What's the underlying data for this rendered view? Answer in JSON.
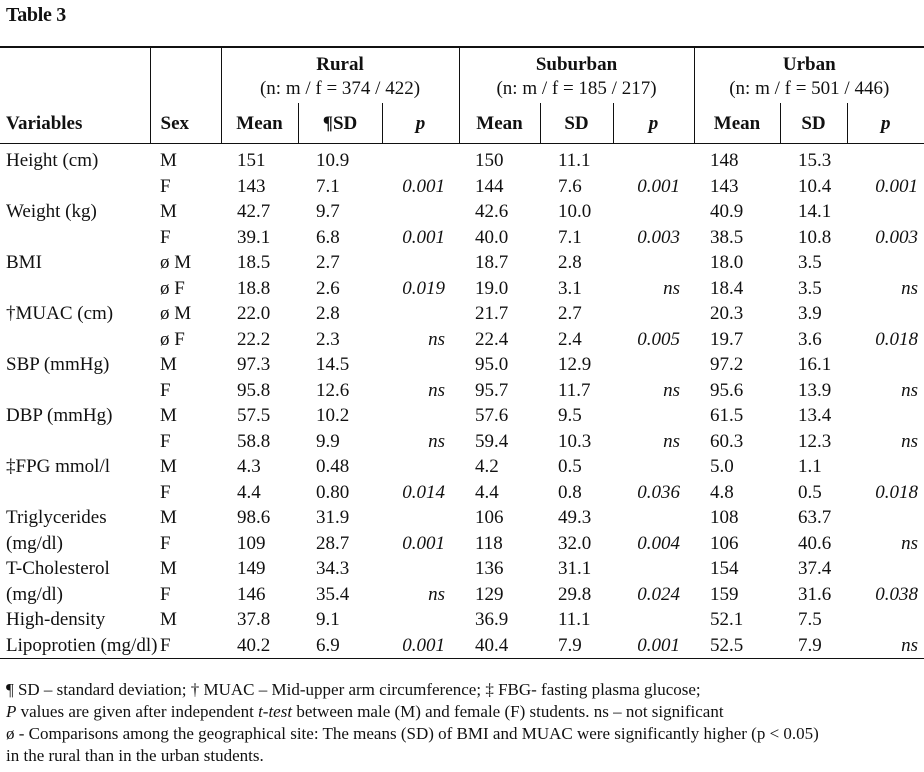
{
  "caption": "Table 3",
  "groups": [
    {
      "name": "Rural",
      "n": "(n: m / f = 374 / 422)"
    },
    {
      "name": "Suburban",
      "n": "(n: m / f = 185 / 217)"
    },
    {
      "name": "Urban",
      "n": "(n: m / f = 501 / 446)"
    }
  ],
  "headers": {
    "variables": "Variables",
    "sex": "Sex",
    "rural": [
      "Mean",
      "¶SD",
      "p"
    ],
    "suburban": [
      "Mean",
      "SD",
      "p"
    ],
    "urban": [
      "Mean",
      "SD",
      "p"
    ]
  },
  "rows": [
    {
      "var": "Height (cm)",
      "sex": "M",
      "cells": [
        "151",
        "10.9",
        "",
        "150",
        "11.1",
        "",
        "148",
        "15.3",
        ""
      ]
    },
    {
      "var": "",
      "sex": "F",
      "cells": [
        "143",
        "7.1",
        "0.001",
        "144",
        "7.6",
        "0.001",
        "143",
        "10.4",
        "0.001"
      ]
    },
    {
      "var": "Weight (kg)",
      "sex": "M",
      "cells": [
        "42.7",
        "9.7",
        "",
        "42.6",
        "10.0",
        "",
        "40.9",
        "14.1",
        ""
      ]
    },
    {
      "var": "",
      "sex": "F",
      "cells": [
        "39.1",
        "6.8",
        "0.001",
        "40.0",
        "7.1",
        "0.003",
        "38.5",
        "10.8",
        "0.003"
      ]
    },
    {
      "var": "BMI",
      "sex": "ø M",
      "cells": [
        "18.5",
        "2.7",
        "",
        "18.7",
        "2.8",
        "",
        "18.0",
        "3.5",
        ""
      ]
    },
    {
      "var": "",
      "sex": "ø F",
      "cells": [
        "18.8",
        "2.6",
        "0.019",
        "19.0",
        "3.1",
        "ns",
        "18.4",
        "3.5",
        "ns"
      ]
    },
    {
      "var": "†MUAC (cm)",
      "sex": "ø M",
      "cells": [
        "22.0",
        "2.8",
        "",
        "21.7",
        "2.7",
        "",
        "20.3",
        "3.9",
        ""
      ]
    },
    {
      "var": "",
      "sex": "ø F",
      "cells": [
        "22.2",
        "2.3",
        "ns",
        "22.4",
        "2.4",
        "0.005",
        "19.7",
        "3.6",
        "0.018"
      ]
    },
    {
      "var": "SBP (mmHg)",
      "sex": "M",
      "cells": [
        "97.3",
        "14.5",
        "",
        "95.0",
        "12.9",
        "",
        "97.2",
        "16.1",
        ""
      ]
    },
    {
      "var": "",
      "sex": "F",
      "cells": [
        "95.8",
        "12.6",
        "ns",
        "95.7",
        "11.7",
        "ns",
        "95.6",
        "13.9",
        "ns"
      ]
    },
    {
      "var": "DBP (mmHg)",
      "sex": "M",
      "cells": [
        "57.5",
        "10.2",
        "",
        "57.6",
        "9.5",
        "",
        "61.5",
        "13.4",
        ""
      ]
    },
    {
      "var": "",
      "sex": "F",
      "cells": [
        "58.8",
        "9.9",
        "ns",
        "59.4",
        "10.3",
        "ns",
        "60.3",
        "12.3",
        "ns"
      ]
    },
    {
      "var": "‡FPG mmol/l",
      "sex": "M",
      "cells": [
        "4.3",
        "0.48",
        "",
        "4.2",
        "0.5",
        "",
        "5.0",
        "1.1",
        ""
      ]
    },
    {
      "var": "",
      "sex": "F",
      "cells": [
        "4.4",
        "0.80",
        "0.014",
        "4.4",
        "0.8",
        "0.036",
        "4.8",
        "0.5",
        "0.018"
      ]
    },
    {
      "var": "Triglycerides",
      "sex": "M",
      "cells": [
        "98.6",
        "31.9",
        "",
        "106",
        "49.3",
        "",
        "108",
        "63.7",
        ""
      ]
    },
    {
      "var": "(mg/dl)",
      "sex": "F",
      "cells": [
        "109",
        "28.7",
        "0.001",
        "118",
        "32.0",
        "0.004",
        "106",
        "40.6",
        "ns"
      ]
    },
    {
      "var": "T-Cholesterol",
      "sex": "M",
      "cells": [
        "149",
        "34.3",
        "",
        "136",
        "31.1",
        "",
        "154",
        "37.4",
        ""
      ]
    },
    {
      "var": "(mg/dl)",
      "sex": "F",
      "cells": [
        "146",
        "35.4",
        "ns",
        "129",
        "29.8",
        "0.024",
        "159",
        "31.6",
        "0.038"
      ]
    },
    {
      "var": "High-density",
      "sex": "M",
      "cells": [
        "37.8",
        "9.1",
        "",
        "36.9",
        "11.1",
        "",
        "52.1",
        "7.5",
        ""
      ]
    },
    {
      "var": "Lipoprotien (mg/dl)",
      "sex": "F",
      "cells": [
        "40.2",
        "6.9",
        "0.001",
        "40.4",
        "7.9",
        "0.001",
        "52.5",
        "7.9",
        "ns"
      ]
    }
  ],
  "notes": [
    "¶ SD – standard deviation; † MUAC – Mid-upper arm circumference; ‡ FBG- fasting plasma glucose;",
    [
      "P",
      " values are given after independent ",
      "t-test",
      " between male (M) and female (F) students. ns – not significant"
    ],
    "ø - Comparisons among the geographical site: The means (SD) of BMI and MUAC were significantly higher (p < 0.05)",
    "in the rural than in the urban students."
  ]
}
